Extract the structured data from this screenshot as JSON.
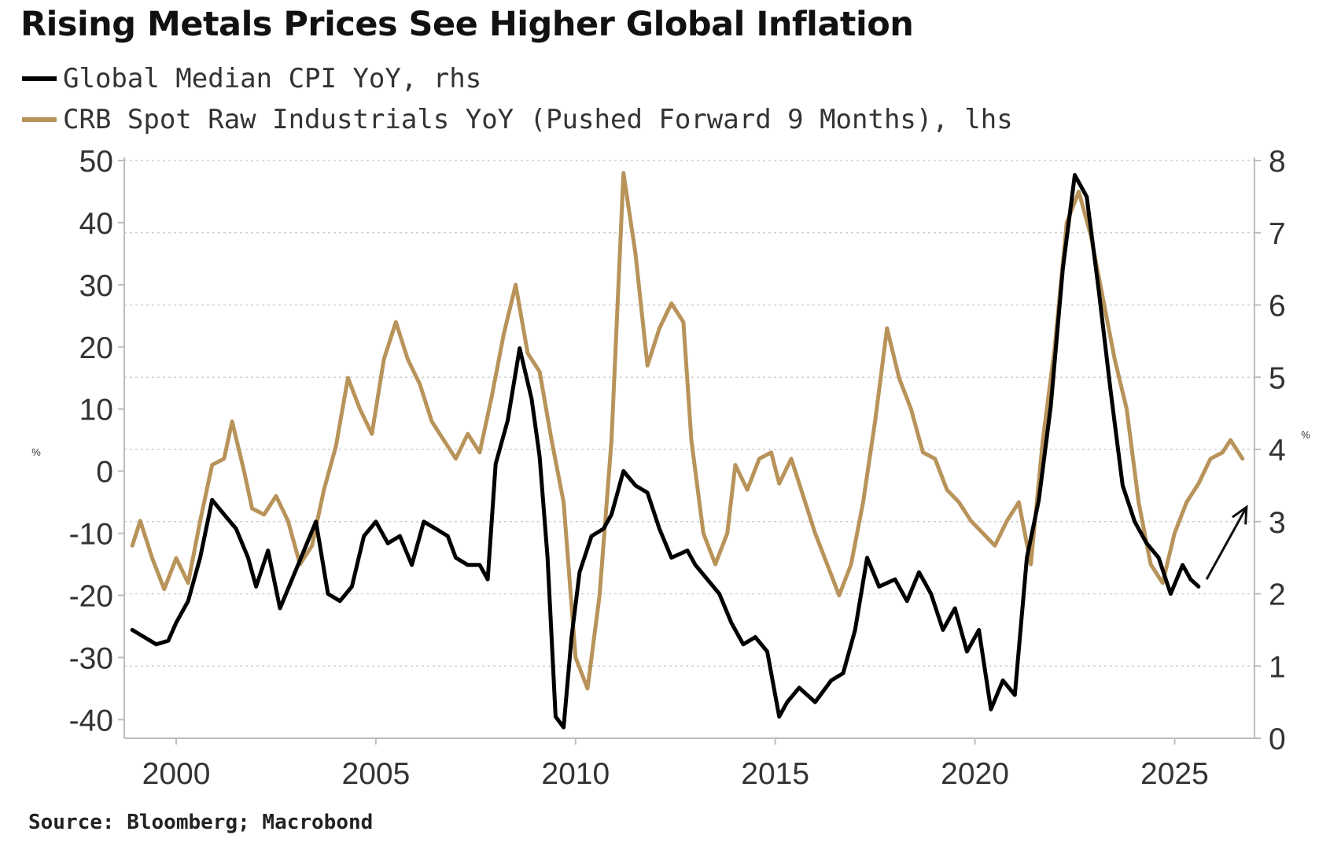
{
  "chart_data": {
    "type": "line",
    "title": "Rising Metals Prices See Higher Global Inflation",
    "source": "Source: Bloomberg; Macrobond",
    "left_axis": {
      "unit": "%",
      "ticks": [
        "50",
        "40",
        "30",
        "20",
        "10",
        "0",
        "-10",
        "-20",
        "-30",
        "-40"
      ],
      "ylim": [
        -43,
        50
      ]
    },
    "right_axis": {
      "unit": "%",
      "ticks": [
        "8",
        "7",
        "6",
        "5",
        "4",
        "3",
        "2",
        "1",
        "0"
      ],
      "ylim": [
        0,
        8
      ]
    },
    "x_axis": {
      "ticks": [
        "2000",
        "2005",
        "2010",
        "2015",
        "2020",
        "2025"
      ],
      "xlim": [
        1998.7,
        2027.0
      ]
    },
    "grid": true,
    "legend_position": "top-left",
    "annotation": "up-arrow",
    "series": [
      {
        "name": "Global Median CPI YoY, rhs",
        "axis": "right",
        "color": "#000000",
        "points": [
          [
            1998.9,
            1.5
          ],
          [
            1999.2,
            1.4
          ],
          [
            1999.5,
            1.3
          ],
          [
            1999.8,
            1.35
          ],
          [
            2000.0,
            1.6
          ],
          [
            2000.3,
            1.9
          ],
          [
            2000.6,
            2.5
          ],
          [
            2000.9,
            3.3
          ],
          [
            2001.2,
            3.1
          ],
          [
            2001.5,
            2.9
          ],
          [
            2001.8,
            2.5
          ],
          [
            2002.0,
            2.1
          ],
          [
            2002.3,
            2.6
          ],
          [
            2002.6,
            1.8
          ],
          [
            2002.9,
            2.2
          ],
          [
            2003.2,
            2.6
          ],
          [
            2003.5,
            3.0
          ],
          [
            2003.8,
            2.0
          ],
          [
            2004.1,
            1.9
          ],
          [
            2004.4,
            2.1
          ],
          [
            2004.7,
            2.8
          ],
          [
            2005.0,
            3.0
          ],
          [
            2005.3,
            2.7
          ],
          [
            2005.6,
            2.8
          ],
          [
            2005.9,
            2.4
          ],
          [
            2006.2,
            3.0
          ],
          [
            2006.5,
            2.9
          ],
          [
            2006.8,
            2.8
          ],
          [
            2007.0,
            2.5
          ],
          [
            2007.3,
            2.4
          ],
          [
            2007.6,
            2.4
          ],
          [
            2007.8,
            2.2
          ],
          [
            2008.0,
            3.8
          ],
          [
            2008.3,
            4.4
          ],
          [
            2008.6,
            5.4
          ],
          [
            2008.9,
            4.7
          ],
          [
            2009.1,
            3.9
          ],
          [
            2009.3,
            2.5
          ],
          [
            2009.5,
            0.3
          ],
          [
            2009.7,
            0.15
          ],
          [
            2009.9,
            1.4
          ],
          [
            2010.1,
            2.3
          ],
          [
            2010.4,
            2.8
          ],
          [
            2010.7,
            2.9
          ],
          [
            2010.9,
            3.1
          ],
          [
            2011.2,
            3.7
          ],
          [
            2011.5,
            3.5
          ],
          [
            2011.8,
            3.4
          ],
          [
            2012.1,
            2.9
          ],
          [
            2012.4,
            2.5
          ],
          [
            2012.8,
            2.6
          ],
          [
            2013.0,
            2.4
          ],
          [
            2013.3,
            2.2
          ],
          [
            2013.6,
            2.0
          ],
          [
            2013.9,
            1.6
          ],
          [
            2014.2,
            1.3
          ],
          [
            2014.5,
            1.4
          ],
          [
            2014.8,
            1.2
          ],
          [
            2015.1,
            0.3
          ],
          [
            2015.3,
            0.5
          ],
          [
            2015.6,
            0.7
          ],
          [
            2016.0,
            0.5
          ],
          [
            2016.4,
            0.8
          ],
          [
            2016.7,
            0.9
          ],
          [
            2017.0,
            1.5
          ],
          [
            2017.3,
            2.5
          ],
          [
            2017.6,
            2.1
          ],
          [
            2018.0,
            2.2
          ],
          [
            2018.3,
            1.9
          ],
          [
            2018.6,
            2.3
          ],
          [
            2018.9,
            2.0
          ],
          [
            2019.2,
            1.5
          ],
          [
            2019.5,
            1.8
          ],
          [
            2019.8,
            1.2
          ],
          [
            2020.1,
            1.5
          ],
          [
            2020.4,
            0.4
          ],
          [
            2020.7,
            0.8
          ],
          [
            2021.0,
            0.6
          ],
          [
            2021.3,
            2.5
          ],
          [
            2021.6,
            3.3
          ],
          [
            2021.9,
            4.6
          ],
          [
            2022.2,
            6.5
          ],
          [
            2022.5,
            7.8
          ],
          [
            2022.8,
            7.5
          ],
          [
            2023.1,
            6.2
          ],
          [
            2023.4,
            4.8
          ],
          [
            2023.7,
            3.5
          ],
          [
            2024.0,
            3.0
          ],
          [
            2024.3,
            2.7
          ],
          [
            2024.6,
            2.5
          ],
          [
            2024.9,
            2.0
          ],
          [
            2025.2,
            2.4
          ],
          [
            2025.4,
            2.2
          ],
          [
            2025.6,
            2.1
          ]
        ]
      },
      {
        "name": "CRB Spot Raw Industrials YoY (Pushed Forward 9 Months), lhs",
        "axis": "left",
        "color": "#b8935a",
        "points": [
          [
            1998.9,
            -12
          ],
          [
            1999.1,
            -8
          ],
          [
            1999.4,
            -14
          ],
          [
            1999.7,
            -19
          ],
          [
            2000.0,
            -14
          ],
          [
            2000.3,
            -18
          ],
          [
            2000.6,
            -8
          ],
          [
            2000.9,
            1
          ],
          [
            2001.2,
            2
          ],
          [
            2001.4,
            8
          ],
          [
            2001.7,
            0
          ],
          [
            2001.9,
            -6
          ],
          [
            2002.2,
            -7
          ],
          [
            2002.5,
            -4
          ],
          [
            2002.8,
            -8
          ],
          [
            2003.1,
            -15
          ],
          [
            2003.4,
            -12
          ],
          [
            2003.7,
            -3
          ],
          [
            2004.0,
            4
          ],
          [
            2004.3,
            15
          ],
          [
            2004.6,
            10
          ],
          [
            2004.9,
            6
          ],
          [
            2005.2,
            18
          ],
          [
            2005.5,
            24
          ],
          [
            2005.8,
            18
          ],
          [
            2006.1,
            14
          ],
          [
            2006.4,
            8
          ],
          [
            2006.7,
            5
          ],
          [
            2007.0,
            2
          ],
          [
            2007.3,
            6
          ],
          [
            2007.6,
            3
          ],
          [
            2007.9,
            12
          ],
          [
            2008.2,
            22
          ],
          [
            2008.5,
            30
          ],
          [
            2008.8,
            19
          ],
          [
            2009.1,
            16
          ],
          [
            2009.4,
            5
          ],
          [
            2009.7,
            -5
          ],
          [
            2010.0,
            -30
          ],
          [
            2010.3,
            -35
          ],
          [
            2010.6,
            -20
          ],
          [
            2010.9,
            5
          ],
          [
            2011.2,
            48
          ],
          [
            2011.5,
            35
          ],
          [
            2011.8,
            17
          ],
          [
            2012.1,
            23
          ],
          [
            2012.4,
            27
          ],
          [
            2012.7,
            24
          ],
          [
            2012.9,
            5
          ],
          [
            2013.2,
            -10
          ],
          [
            2013.5,
            -15
          ],
          [
            2013.8,
            -10
          ],
          [
            2014.0,
            1
          ],
          [
            2014.3,
            -3
          ],
          [
            2014.6,
            2
          ],
          [
            2014.9,
            3
          ],
          [
            2015.1,
            -2
          ],
          [
            2015.4,
            2
          ],
          [
            2015.7,
            -4
          ],
          [
            2016.0,
            -10
          ],
          [
            2016.3,
            -15
          ],
          [
            2016.6,
            -20
          ],
          [
            2016.9,
            -15
          ],
          [
            2017.2,
            -5
          ],
          [
            2017.5,
            8
          ],
          [
            2017.8,
            23
          ],
          [
            2018.1,
            15
          ],
          [
            2018.4,
            10
          ],
          [
            2018.7,
            3
          ],
          [
            2019.0,
            2
          ],
          [
            2019.3,
            -3
          ],
          [
            2019.6,
            -5
          ],
          [
            2019.9,
            -8
          ],
          [
            2020.2,
            -10
          ],
          [
            2020.5,
            -12
          ],
          [
            2020.8,
            -8
          ],
          [
            2021.1,
            -5
          ],
          [
            2021.4,
            -15
          ],
          [
            2021.7,
            5
          ],
          [
            2022.0,
            20
          ],
          [
            2022.3,
            40
          ],
          [
            2022.6,
            45
          ],
          [
            2022.9,
            38
          ],
          [
            2023.2,
            28
          ],
          [
            2023.5,
            18
          ],
          [
            2023.8,
            10
          ],
          [
            2024.1,
            -5
          ],
          [
            2024.4,
            -15
          ],
          [
            2024.7,
            -18
          ],
          [
            2025.0,
            -10
          ],
          [
            2025.3,
            -5
          ],
          [
            2025.6,
            -2
          ],
          [
            2025.9,
            2
          ],
          [
            2026.2,
            3
          ],
          [
            2026.4,
            5
          ],
          [
            2026.7,
            2
          ]
        ]
      }
    ]
  }
}
